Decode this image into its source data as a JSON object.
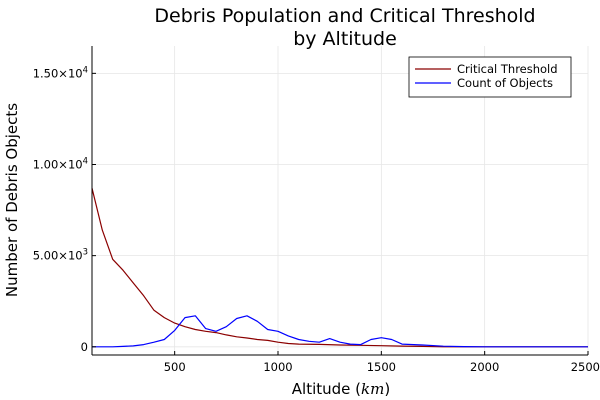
{
  "chart_data": {
    "type": "line",
    "title_line1": "Debris Population and Critical Threshold",
    "title_line2": "by Altitude",
    "xlabel": "Altitude (km)",
    "xlabel_prefix": "Altitude (",
    "xlabel_unit": "km",
    "xlabel_suffix": ")",
    "ylabel": "Number of Debris Objects",
    "xlim": [
      100,
      2500
    ],
    "ylim": [
      -450,
      16500
    ],
    "xticks": [
      500,
      1000,
      1500,
      2000,
      2500
    ],
    "xtick_labels": [
      "500",
      "1000",
      "1500",
      "2000",
      "2500"
    ],
    "yticks": [
      0,
      5000,
      10000,
      15000
    ],
    "ytick_labels": [
      {
        "mantissa": "0",
        "exponent": ""
      },
      {
        "mantissa": "5.00×10",
        "exponent": "3"
      },
      {
        "mantissa": "1.00×10",
        "exponent": "4"
      },
      {
        "mantissa": "1.50×10",
        "exponent": "4"
      }
    ],
    "grid": true,
    "legend_position": "top-right",
    "series": [
      {
        "name": "Critical Threshold",
        "color": "#8b0000",
        "points": [
          [
            100,
            8700
          ],
          [
            150,
            6400
          ],
          [
            200,
            4800
          ],
          [
            250,
            4200
          ],
          [
            300,
            3500
          ],
          [
            350,
            2800
          ],
          [
            400,
            2000
          ],
          [
            450,
            1600
          ],
          [
            500,
            1300
          ],
          [
            550,
            1100
          ],
          [
            600,
            950
          ],
          [
            650,
            850
          ],
          [
            700,
            780
          ],
          [
            750,
            650
          ],
          [
            800,
            550
          ],
          [
            850,
            480
          ],
          [
            900,
            400
          ],
          [
            950,
            350
          ],
          [
            1000,
            250
          ],
          [
            1050,
            180
          ],
          [
            1100,
            150
          ],
          [
            1200,
            130
          ],
          [
            1300,
            100
          ],
          [
            1400,
            80
          ],
          [
            1500,
            60
          ],
          [
            1600,
            40
          ],
          [
            1700,
            20
          ],
          [
            1800,
            0
          ],
          [
            1900,
            0
          ],
          [
            2000,
            0
          ],
          [
            2100,
            0
          ],
          [
            2200,
            0
          ],
          [
            2300,
            0
          ],
          [
            2400,
            0
          ],
          [
            2500,
            0
          ]
        ]
      },
      {
        "name": "Count of Objects",
        "color": "#0000ff",
        "points": [
          [
            100,
            0
          ],
          [
            150,
            0
          ],
          [
            200,
            0
          ],
          [
            250,
            20
          ],
          [
            300,
            50
          ],
          [
            350,
            120
          ],
          [
            400,
            250
          ],
          [
            450,
            400
          ],
          [
            500,
            900
          ],
          [
            550,
            1600
          ],
          [
            600,
            1700
          ],
          [
            650,
            1000
          ],
          [
            700,
            850
          ],
          [
            750,
            1100
          ],
          [
            800,
            1550
          ],
          [
            850,
            1700
          ],
          [
            900,
            1400
          ],
          [
            950,
            950
          ],
          [
            1000,
            850
          ],
          [
            1050,
            600
          ],
          [
            1100,
            400
          ],
          [
            1150,
            300
          ],
          [
            1200,
            250
          ],
          [
            1250,
            450
          ],
          [
            1300,
            250
          ],
          [
            1350,
            150
          ],
          [
            1400,
            120
          ],
          [
            1450,
            400
          ],
          [
            1500,
            500
          ],
          [
            1550,
            400
          ],
          [
            1600,
            150
          ],
          [
            1700,
            100
          ],
          [
            1800,
            30
          ],
          [
            1900,
            10
          ],
          [
            2000,
            0
          ],
          [
            2100,
            0
          ],
          [
            2200,
            0
          ],
          [
            2300,
            0
          ],
          [
            2400,
            0
          ],
          [
            2500,
            0
          ]
        ]
      }
    ]
  }
}
